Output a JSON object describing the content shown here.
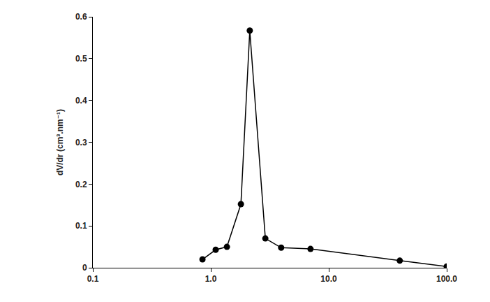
{
  "chart_data": {
    "type": "line",
    "y_label": "dV/dr (cm³.nm⁻¹)",
    "x": [
      0.85,
      1.1,
      1.37,
      1.8,
      2.14,
      2.9,
      3.95,
      7.0,
      40,
      100
    ],
    "values": [
      0.02,
      0.043,
      0.05,
      0.152,
      0.567,
      0.07,
      0.048,
      0.045,
      0.017,
      0.003
    ],
    "color": "#000000",
    "marker": "circle",
    "line_style": "solid",
    "log": "x",
    "grid": false,
    "xlim": [
      0.1,
      100
    ],
    "xticks": [
      0.1,
      {
        "value": 1,
        "label": "1.0"
      },
      {
        "value": 10,
        "label": "10.0"
      },
      {
        "value": 100,
        "label": "100.0"
      }
    ],
    "ylim": [
      0,
      0.6
    ],
    "yticks": [
      0,
      0.1,
      0.2,
      0.3,
      0.4,
      0.5,
      0.6
    ]
  }
}
